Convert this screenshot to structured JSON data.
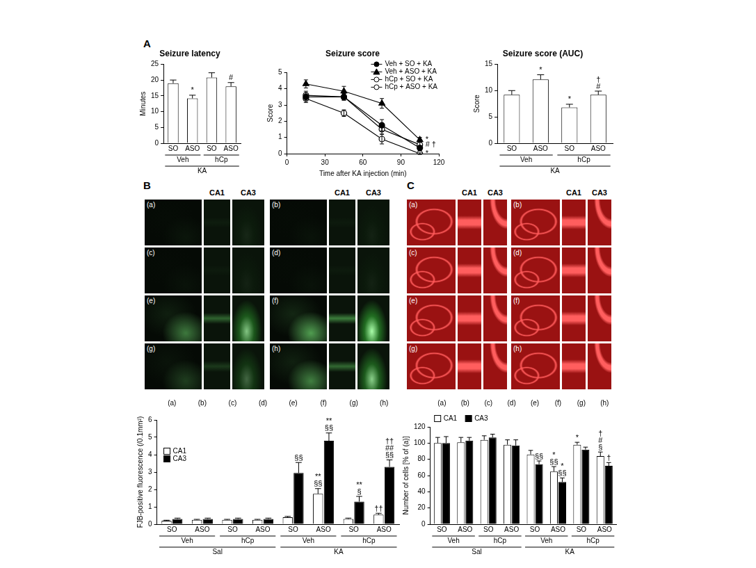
{
  "panel_labels": [
    "A",
    "B",
    "C"
  ],
  "micrographs": [
    {
      "headers": [
        "CA1",
        "CA3"
      ],
      "panels": [
        "(a)",
        "(b)",
        "(c)",
        "(d)",
        "(e)",
        "(f)",
        "(g)",
        "(h)"
      ]
    },
    {
      "headers": [
        "CA1",
        "CA3"
      ],
      "panels": [
        "(a)",
        "(b)",
        "(c)",
        "(d)",
        "(e)",
        "(f)",
        "(g)",
        "(h)"
      ]
    }
  ],
  "chart_data": [
    {
      "type": "bar",
      "title": "Seizure latency",
      "ylabel": "Minutes",
      "categories": [
        "SO",
        "ASO",
        "SO",
        "ASO"
      ],
      "groups": [
        "Veh",
        "hCp"
      ],
      "supergroups": [
        "KA"
      ],
      "values": [
        19,
        14.2,
        20.8,
        18
      ],
      "errors": [
        1,
        1,
        1.5,
        1.2
      ],
      "marks": [
        null,
        [
          "*"
        ],
        null,
        [
          "#"
        ]
      ],
      "color": "#ffffff",
      "ylim": [
        0,
        25
      ],
      "yticks": [
        0,
        5,
        10,
        15,
        20,
        25
      ]
    },
    {
      "type": "line",
      "title": "Seizure score",
      "xlabel": "Time after KA injection (min)",
      "ylabel": "Score",
      "x": [
        15,
        45,
        75,
        105
      ],
      "series": [
        {
          "name": "Veh + SO + KA",
          "color": "#000000",
          "marker": "circle",
          "values": [
            3.5,
            3.5,
            1.75,
            0.35
          ],
          "errors": [
            0.25,
            0.2,
            0.35,
            0.15
          ]
        },
        {
          "name": "Veh + ASO + KA",
          "color": "#000000",
          "marker": "triangle",
          "values": [
            4.3,
            3.85,
            3.1,
            0.85
          ],
          "errors": [
            0.25,
            0.3,
            0.3,
            0.15
          ],
          "marks": [
            null,
            null,
            null,
            [
              "*"
            ]
          ]
        },
        {
          "name": "hCp + SO + KA",
          "color": "#000000",
          "marker": "open circle",
          "values": [
            3.4,
            2.5,
            0.9,
            0.0
          ],
          "errors": [
            0.25,
            0.2,
            0.3,
            0.05
          ],
          "marks": [
            null,
            null,
            null,
            [
              "*"
            ]
          ]
        },
        {
          "name": "hCp + ASO + KA",
          "color": "#000000",
          "marker": "open circle",
          "values": [
            3.6,
            3.5,
            1.5,
            0.55
          ],
          "errors": [
            0.25,
            0.2,
            0.3,
            0.15
          ],
          "marks": [
            null,
            null,
            null,
            [
              "#",
              "†"
            ]
          ]
        }
      ],
      "legend": "upper right",
      "xlim": [
        0,
        120
      ],
      "xticks": [
        0,
        30,
        60,
        90,
        120
      ],
      "ylim": [
        0,
        5
      ],
      "yticks": [
        0,
        1,
        2,
        3,
        4,
        5
      ]
    },
    {
      "type": "bar",
      "title": "Seizure score (AUC)",
      "ylabel": "Score",
      "categories": [
        "SO",
        "ASO",
        "SO",
        "ASO"
      ],
      "groups": [
        "Veh",
        "hCp"
      ],
      "supergroups": [
        "KA"
      ],
      "values": [
        9.2,
        12.1,
        6.8,
        9.2
      ],
      "errors": [
        0.8,
        0.9,
        0.6,
        0.7
      ],
      "marks": [
        null,
        [
          "*"
        ],
        [
          "*"
        ],
        [
          "†",
          "#"
        ]
      ],
      "color": "#ffffff",
      "ylim": [
        0,
        15
      ],
      "yticks": [
        0,
        5,
        10,
        15
      ]
    },
    {
      "type": "bar",
      "ylabel": "FJB-positive fluorescence (/0.1mm²)",
      "top_labels": [
        "(a)",
        "(b)",
        "(c)",
        "(d)",
        "(e)",
        "(f)",
        "(g)",
        "(h)"
      ],
      "categories": [
        "SO",
        "ASO",
        "SO",
        "ASO",
        "SO",
        "ASO",
        "SO",
        "ASO"
      ],
      "groups": [
        "Veh",
        "hCp",
        "Veh",
        "hCp"
      ],
      "supergroups": [
        "Sal",
        "KA"
      ],
      "series": [
        {
          "name": "CA1",
          "color": "#ffffff",
          "values": [
            0.2,
            0.25,
            0.25,
            0.25,
            0.4,
            1.75,
            0.3,
            0.55
          ],
          "errors": [
            0.03,
            0.03,
            0.03,
            0.03,
            0.05,
            0.3,
            0.05,
            0.08
          ],
          "marks": [
            null,
            null,
            null,
            null,
            null,
            [
              "**",
              "§§"
            ],
            null,
            [
              "††"
            ]
          ]
        },
        {
          "name": "CA3",
          "color": "#000000",
          "values": [
            0.3,
            0.3,
            0.3,
            0.3,
            2.95,
            4.8,
            1.3,
            3.3
          ],
          "errors": [
            0.05,
            0.05,
            0.05,
            0.05,
            0.6,
            0.45,
            0.3,
            0.4
          ],
          "marks": [
            null,
            null,
            null,
            null,
            [
              "§§"
            ],
            [
              "**",
              "§§"
            ],
            [
              "**",
              "§"
            ],
            [
              "††",
              "##",
              "§§"
            ]
          ]
        }
      ],
      "legend": "upper left",
      "ylim": [
        0,
        6
      ],
      "yticks": [
        0,
        1,
        2,
        3,
        4,
        5,
        6
      ]
    },
    {
      "type": "bar",
      "ylabel": "Number of cells [% of (a)]",
      "top_labels": [
        "(a)",
        "(b)",
        "(c)",
        "(d)",
        "(e)",
        "(f)",
        "(g)",
        "(h)"
      ],
      "categories": [
        "SO",
        "ASO",
        "SO",
        "ASO",
        "SO",
        "ASO",
        "SO",
        "ASO"
      ],
      "groups": [
        "Veh",
        "hCp",
        "Veh",
        "hCp"
      ],
      "supergroups": [
        "Sal",
        "KA"
      ],
      "series": [
        {
          "name": "CA1",
          "color": "#ffffff",
          "values": [
            100,
            101,
            104,
            98,
            86,
            65,
            98,
            84
          ],
          "errors": [
            7,
            6,
            5,
            6,
            5,
            6,
            3,
            5
          ],
          "marks": [
            null,
            null,
            null,
            null,
            null,
            [
              "*",
              "§§"
            ],
            [
              "*"
            ],
            [
              "†",
              "#",
              "§"
            ]
          ]
        },
        {
          "name": "CA3",
          "color": "#000000",
          "values": [
            100,
            103,
            107,
            97,
            74,
            52,
            92,
            72
          ],
          "errors": [
            8,
            4,
            4,
            7,
            4,
            5,
            3,
            4
          ],
          "marks": [
            null,
            null,
            null,
            null,
            [
              "§§"
            ],
            [
              "*",
              "§§"
            ],
            null,
            [
              "†"
            ]
          ]
        }
      ],
      "legend": "top",
      "ylim": [
        0,
        120
      ],
      "yticks": [
        0,
        20,
        40,
        60,
        80,
        100,
        120
      ]
    }
  ]
}
